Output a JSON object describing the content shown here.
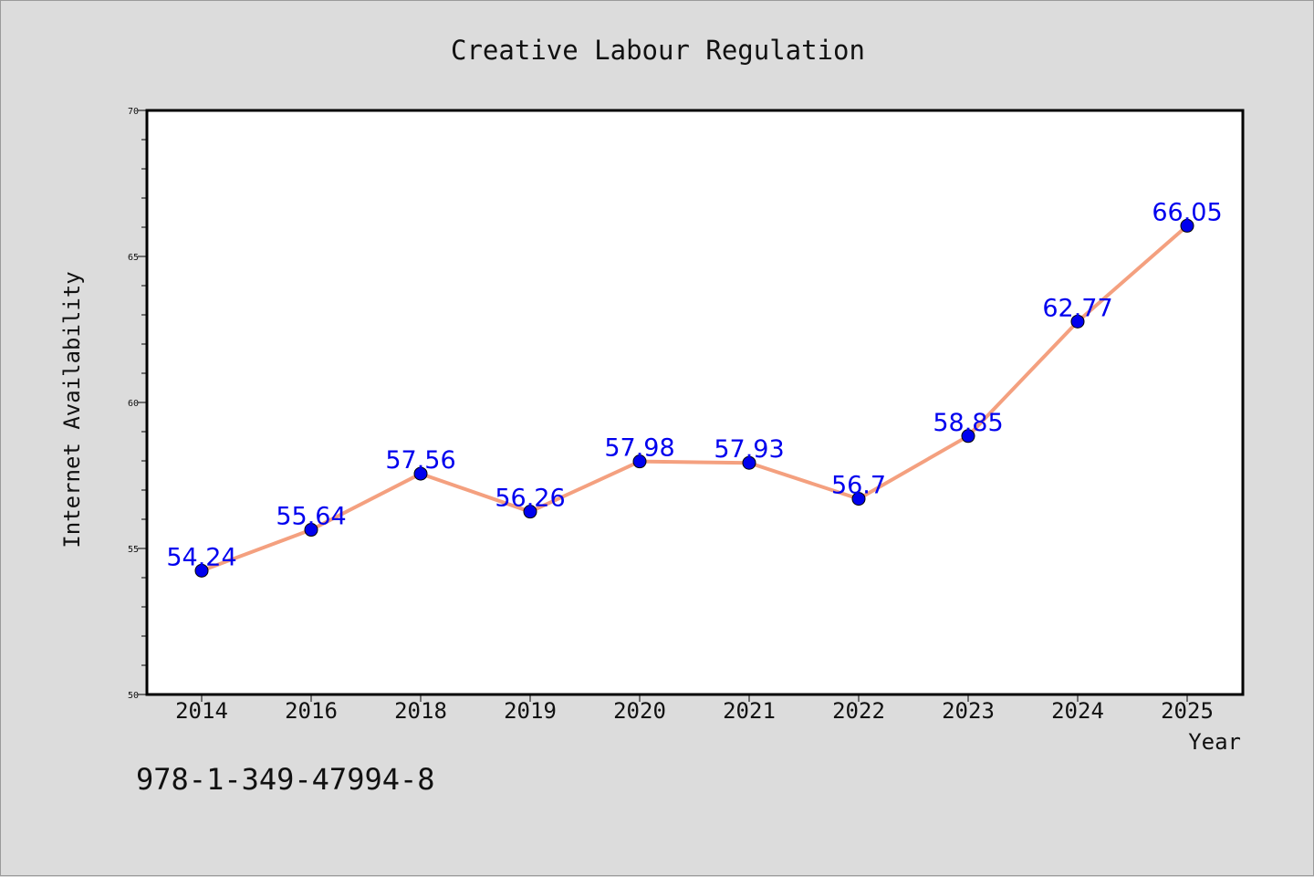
{
  "chart_data": {
    "type": "line",
    "title": "Creative Labour Regulation",
    "xlabel": "Year",
    "ylabel": "Internet Availability",
    "categories": [
      "2014",
      "2016",
      "2018",
      "2019",
      "2020",
      "2021",
      "2022",
      "2023",
      "2024",
      "2025"
    ],
    "series": [
      {
        "values": [
          54.24,
          55.64,
          57.56,
          56.26,
          57.98,
          57.93,
          56.7,
          58.85,
          62.77,
          66.05
        ],
        "labels": [
          "54.24",
          "55.64",
          "57.56",
          "56.26",
          "57.98",
          "57.93",
          "56.7",
          "58.85",
          "62.77",
          "66.05"
        ]
      }
    ],
    "ylim": [
      50,
      70
    ],
    "yticks": [
      50,
      55,
      60,
      65,
      70
    ],
    "yminor_step": 1,
    "grid": false,
    "colors": {
      "line": "#f4a07f",
      "marker": "#0000ee",
      "data_label": "#0000ee",
      "background": "#dcdcdc",
      "plot_area": "#ffffff"
    }
  },
  "footer": {
    "isbn": "978-1-349-47994-8"
  }
}
